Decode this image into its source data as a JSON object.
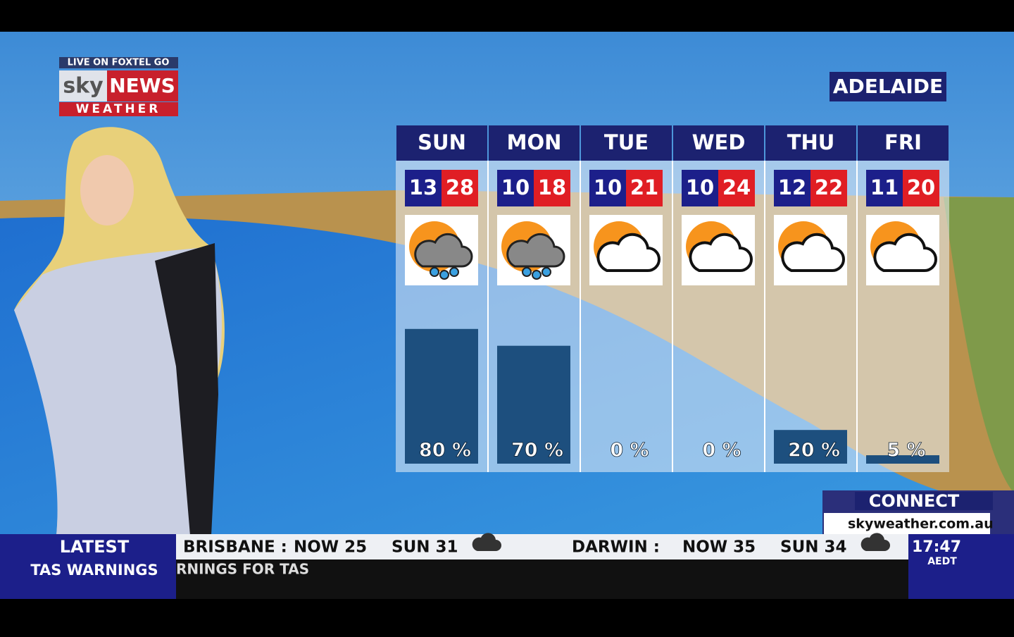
{
  "branding": {
    "live": "LIVE ON FOXTEL GO",
    "sky": "sky",
    "news": "NEWS",
    "weather": "WEATHER"
  },
  "location": "ADELAIDE",
  "forecast": [
    {
      "day": "SUN",
      "min": 13,
      "max": 28,
      "icon": "showers",
      "rain": {
        "value": 80,
        "label": "80 %"
      }
    },
    {
      "day": "MON",
      "min": 10,
      "max": 18,
      "icon": "showers",
      "rain": {
        "value": 70,
        "label": "70 %"
      }
    },
    {
      "day": "TUE",
      "min": 10,
      "max": 21,
      "icon": "partly-cloudy",
      "rain": {
        "value": 0,
        "label": "0 %"
      }
    },
    {
      "day": "WED",
      "min": 10,
      "max": 24,
      "icon": "partly-cloudy",
      "rain": {
        "value": 0,
        "label": "0 %"
      }
    },
    {
      "day": "THU",
      "min": 12,
      "max": 22,
      "icon": "partly-cloudy",
      "rain": {
        "value": 20,
        "label": "20 %"
      }
    },
    {
      "day": "FRI",
      "min": 11,
      "max": 20,
      "icon": "partly-cloudy",
      "rain": {
        "value": 5,
        "label": "5 %"
      }
    }
  ],
  "connect": {
    "title": "CONNECT",
    "url": "skyweather.com.au"
  },
  "ticker": {
    "label": "LATEST",
    "sublabel": "TAS WARNINGS",
    "scroll": "RNINGS FOR TAS",
    "items": [
      {
        "city": "BRISBANE :",
        "now": "NOW  25",
        "sun": "SUN  31"
      },
      {
        "city": "DARWIN :",
        "now": "NOW  35",
        "sun": "SUN  34"
      }
    ],
    "time": "17:47",
    "zone": "AEDT"
  }
}
